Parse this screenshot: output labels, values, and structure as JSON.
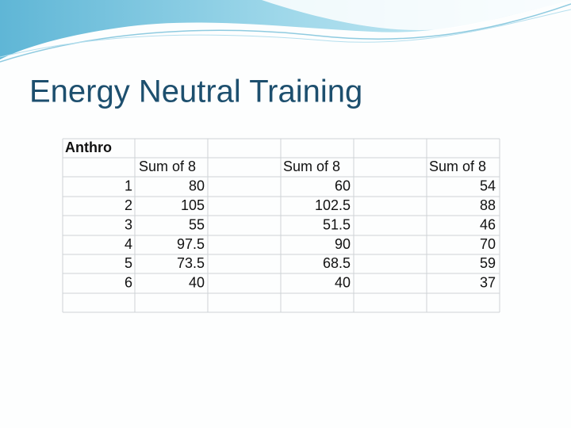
{
  "title": "Energy Neutral Training",
  "table": {
    "label": "Anthro",
    "headers": [
      "Sum of 8",
      "Sum of 8",
      "Sum of 8"
    ],
    "rows": [
      [
        1,
        80,
        60,
        54
      ],
      [
        2,
        105,
        102.5,
        88
      ],
      [
        3,
        55,
        51.5,
        46
      ],
      [
        4,
        97.5,
        90,
        70
      ],
      [
        5,
        73.5,
        68.5,
        59
      ],
      [
        6,
        40,
        40,
        37
      ]
    ]
  }
}
